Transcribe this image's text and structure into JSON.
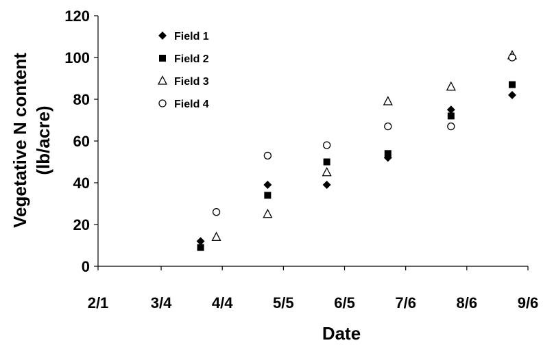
{
  "chart_data": {
    "type": "scatter",
    "xlabel": "Date",
    "ylabel_lines": [
      "Vegetative N content",
      "(lb/acre)"
    ],
    "xlim": [
      "2/1",
      "9/6"
    ],
    "ylim": [
      0,
      120
    ],
    "yticks": [
      0,
      20,
      40,
      60,
      80,
      100,
      120
    ],
    "xticks": [
      "2/1",
      "3/4",
      "4/4",
      "5/5",
      "6/5",
      "7/6",
      "8/6",
      "9/6"
    ],
    "grid": false,
    "legend_placement": "top-left",
    "series": [
      {
        "name": "Field 1",
        "marker": "filled-diamond",
        "points": [
          [
            "3/24",
            12
          ],
          [
            "4/27",
            39
          ],
          [
            "5/27",
            39
          ],
          [
            "6/27",
            52
          ],
          [
            "7/29",
            75
          ],
          [
            "8/29",
            82
          ]
        ]
      },
      {
        "name": "Field 2",
        "marker": "filled-square",
        "points": [
          [
            "3/24",
            9
          ],
          [
            "4/27",
            34
          ],
          [
            "5/27",
            50
          ],
          [
            "6/27",
            54
          ],
          [
            "7/29",
            72
          ],
          [
            "8/29",
            87
          ]
        ]
      },
      {
        "name": "Field 3",
        "marker": "open-triangle",
        "points": [
          [
            "4/1",
            14
          ],
          [
            "4/27",
            25
          ],
          [
            "5/27",
            45
          ],
          [
            "6/27",
            79
          ],
          [
            "7/29",
            86
          ],
          [
            "8/29",
            101
          ]
        ]
      },
      {
        "name": "Field 4",
        "marker": "open-circle",
        "points": [
          [
            "4/1",
            26
          ],
          [
            "4/27",
            53
          ],
          [
            "5/27",
            58
          ],
          [
            "6/27",
            67
          ],
          [
            "7/29",
            67
          ],
          [
            "8/29",
            100
          ]
        ]
      }
    ]
  }
}
